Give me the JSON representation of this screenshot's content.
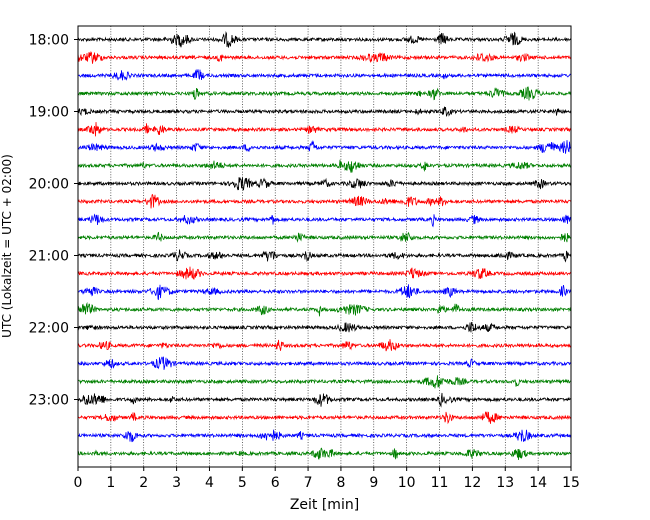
{
  "chart_data": {
    "type": "line",
    "xlabel": "Zeit  [min]",
    "ylabel": "UTC (Lokalzeit = UTC + 02:00)",
    "xlim": [
      0,
      15
    ],
    "x_ticks": [
      0,
      1,
      2,
      3,
      4,
      5,
      6,
      7,
      8,
      9,
      10,
      11,
      12,
      13,
      14,
      15
    ],
    "x_tick_labels": [
      "0",
      "1",
      "2",
      "3",
      "4",
      "5",
      "6",
      "7",
      "8",
      "9",
      "10",
      "11",
      "12",
      "13",
      "14",
      "15"
    ],
    "grid": "vertical dotted lines at each minute",
    "hours_labeled": [
      "18:00",
      "19:00",
      "20:00",
      "21:00",
      "22:00",
      "23:00"
    ],
    "trace_interval_minutes": 15,
    "trace_start": "18:00",
    "trace_count": 24,
    "trace_color_cycle": [
      "#000000",
      "#ff0000",
      "#0000ff",
      "#008000"
    ]
  }
}
